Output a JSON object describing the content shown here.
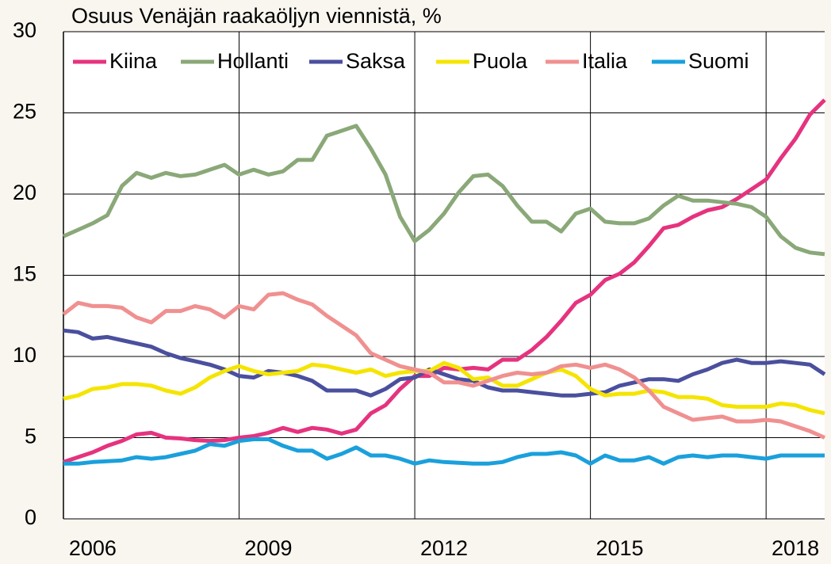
{
  "chart_data": {
    "type": "line",
    "title": "Osuus Venäjän raakaöljyn viennistä, %",
    "x": [
      2006,
      2006.25,
      2006.5,
      2006.75,
      2007,
      2007.25,
      2007.5,
      2007.75,
      2008,
      2008.25,
      2008.5,
      2008.75,
      2009,
      2009.25,
      2009.5,
      2009.75,
      2010,
      2010.25,
      2010.5,
      2010.75,
      2011,
      2011.25,
      2011.5,
      2011.75,
      2012,
      2012.25,
      2012.5,
      2012.75,
      2013,
      2013.25,
      2013.5,
      2013.75,
      2014,
      2014.25,
      2014.5,
      2014.75,
      2015,
      2015.25,
      2015.5,
      2015.75,
      2016,
      2016.25,
      2016.5,
      2016.75,
      2017,
      2017.25,
      2017.5,
      2017.75,
      2018,
      2018.25,
      2018.5,
      2018.75,
      2019
    ],
    "series": [
      {
        "name": "Kiina",
        "color": "#e5337f",
        "values": [
          3.5,
          3.8,
          4.1,
          4.5,
          4.8,
          5.2,
          5.3,
          5.0,
          4.95,
          4.85,
          4.8,
          4.85,
          5.0,
          5.1,
          5.3,
          5.6,
          5.35,
          5.6,
          5.5,
          5.25,
          5.5,
          6.5,
          7.0,
          8.0,
          8.8,
          8.8,
          9.3,
          9.2,
          9.3,
          9.2,
          9.8,
          9.8,
          10.4,
          11.2,
          12.2,
          13.3,
          13.8,
          14.7,
          15.1,
          15.8,
          16.8,
          17.9,
          18.1,
          18.6,
          19.0,
          19.2,
          19.7,
          20.3,
          20.9,
          22.2,
          23.4,
          24.9,
          25.8
        ]
      },
      {
        "name": "Hollanti",
        "color": "#8aa878",
        "values": [
          17.4,
          17.8,
          18.2,
          18.7,
          20.5,
          21.3,
          21.0,
          21.3,
          21.1,
          21.2,
          21.5,
          21.8,
          21.2,
          21.5,
          21.2,
          21.4,
          22.1,
          22.1,
          23.6,
          23.9,
          24.2,
          22.8,
          21.2,
          18.6,
          17.1,
          17.8,
          18.8,
          20.1,
          21.1,
          21.2,
          20.5,
          19.3,
          18.3,
          18.3,
          17.7,
          18.8,
          19.1,
          18.3,
          18.2,
          18.2,
          18.5,
          19.3,
          19.9,
          19.6,
          19.6,
          19.5,
          19.4,
          19.2,
          18.6,
          17.4,
          16.7,
          16.4,
          16.3
        ]
      },
      {
        "name": "Saksa",
        "color": "#4a4f9e",
        "values": [
          11.6,
          11.5,
          11.1,
          11.2,
          11.0,
          10.8,
          10.6,
          10.2,
          9.9,
          9.7,
          9.5,
          9.2,
          8.8,
          8.7,
          9.1,
          9.0,
          8.8,
          8.5,
          7.9,
          7.9,
          7.9,
          7.6,
          8.0,
          8.6,
          8.7,
          9.2,
          8.9,
          8.6,
          8.5,
          8.1,
          7.9,
          7.9,
          7.8,
          7.7,
          7.6,
          7.6,
          7.7,
          7.8,
          8.2,
          8.4,
          8.6,
          8.6,
          8.5,
          8.9,
          9.2,
          9.6,
          9.8,
          9.6,
          9.6,
          9.7,
          9.6,
          9.5,
          8.9
        ]
      },
      {
        "name": "Puola",
        "color": "#f5e400",
        "values": [
          7.4,
          7.6,
          8.0,
          8.1,
          8.3,
          8.3,
          8.2,
          7.9,
          7.7,
          8.1,
          8.7,
          9.1,
          9.4,
          9.1,
          8.9,
          9.0,
          9.1,
          9.5,
          9.4,
          9.2,
          9.0,
          9.2,
          8.8,
          9.0,
          9.1,
          9.1,
          9.6,
          9.3,
          8.6,
          8.7,
          8.2,
          8.2,
          8.6,
          9.0,
          9.2,
          8.8,
          8.0,
          7.6,
          7.7,
          7.7,
          7.9,
          7.8,
          7.5,
          7.5,
          7.4,
          7.0,
          6.9,
          6.9,
          6.9,
          7.1,
          7.0,
          6.7,
          6.5
        ]
      },
      {
        "name": "Italia",
        "color": "#f09090",
        "values": [
          12.6,
          13.3,
          13.1,
          13.1,
          13.0,
          12.4,
          12.1,
          12.8,
          12.8,
          13.1,
          12.9,
          12.4,
          13.1,
          12.9,
          13.8,
          13.9,
          13.5,
          13.2,
          12.5,
          11.9,
          11.3,
          10.2,
          9.8,
          9.4,
          9.2,
          9.0,
          8.4,
          8.4,
          8.2,
          8.5,
          8.8,
          9.0,
          8.9,
          9.0,
          9.4,
          9.5,
          9.3,
          9.5,
          9.2,
          8.7,
          7.9,
          6.9,
          6.5,
          6.1,
          6.2,
          6.3,
          6.0,
          6.0,
          6.1,
          6.0,
          5.7,
          5.4,
          5.0
        ]
      },
      {
        "name": "Suomi",
        "color": "#1aa0dc",
        "values": [
          3.4,
          3.4,
          3.5,
          3.55,
          3.6,
          3.8,
          3.7,
          3.8,
          4.0,
          4.2,
          4.6,
          4.5,
          4.8,
          4.9,
          4.9,
          4.5,
          4.2,
          4.2,
          3.7,
          4.0,
          4.4,
          3.9,
          3.9,
          3.7,
          3.4,
          3.6,
          3.5,
          3.45,
          3.4,
          3.4,
          3.5,
          3.8,
          4.0,
          4.0,
          4.1,
          3.9,
          3.4,
          3.9,
          3.6,
          3.6,
          3.8,
          3.4,
          3.8,
          3.9,
          3.8,
          3.9,
          3.9,
          3.8,
          3.7,
          3.9,
          3.9,
          3.9,
          3.9
        ]
      }
    ],
    "xlim": [
      2006,
      2019
    ],
    "xticks": [
      {
        "value": 2006.5,
        "label": "2006"
      },
      {
        "value": 2009.5,
        "label": "2009"
      },
      {
        "value": 2012.5,
        "label": "2012"
      },
      {
        "value": 2015.5,
        "label": "2015"
      },
      {
        "value": 2018.5,
        "label": "2018"
      }
    ],
    "xgrid": [
      2009,
      2012,
      2015,
      2018
    ],
    "ylim": [
      0,
      30
    ],
    "yticks": [
      0,
      5,
      10,
      15,
      20,
      25,
      30
    ],
    "grid": true
  }
}
